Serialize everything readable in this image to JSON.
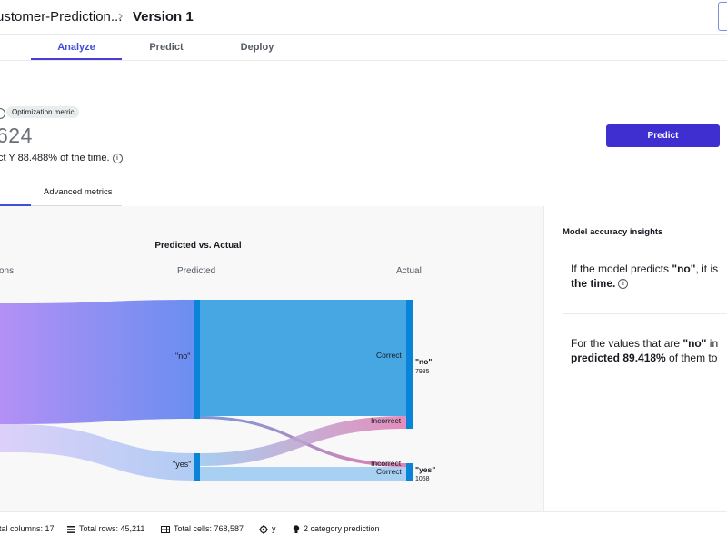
{
  "header": {
    "model_name": "ustomer-Prediction...",
    "version": "Version 1"
  },
  "tabs": [
    {
      "label": "Analyze",
      "active": true
    },
    {
      "label": "Predict",
      "active": false
    },
    {
      "label": "Deploy",
      "active": false
    }
  ],
  "metric": {
    "badge": "Optimization metric",
    "value": "624",
    "description": "ct Y 88.488% of the time."
  },
  "actions": {
    "predict_label": "Predict"
  },
  "subtabs": {
    "advanced": "Advanced metrics"
  },
  "chart_data": {
    "type": "sankey",
    "title": "Predicted vs. Actual",
    "columns": [
      "ons",
      "Predicted",
      "Actual"
    ],
    "predicted_nodes": [
      "\"no\"",
      "\"yes\""
    ],
    "actual_nodes": [
      {
        "name": "\"no\"",
        "count": "7985"
      },
      {
        "name": "\"yes\"",
        "count": "1058"
      }
    ],
    "flows": [
      {
        "predicted": "\"no\"",
        "actual": "\"no\"",
        "label": "Correct"
      },
      {
        "predicted": "\"no\"",
        "actual": "\"yes\"",
        "label": "Incorrect"
      },
      {
        "predicted": "\"yes\"",
        "actual": "\"no\"",
        "label": "Incorrect"
      },
      {
        "predicted": "\"yes\"",
        "actual": "\"yes\"",
        "label": "Correct"
      }
    ]
  },
  "insights": {
    "title": "Model accuracy insights",
    "item1_prefix": "If the model predicts ",
    "item1_value": "\"no\"",
    "item1_suffix": ", it is",
    "item1_line2": "the time.",
    "item2_prefix": "For the values that are ",
    "item2_value": "\"no\"",
    "item2_suffix": " in",
    "item2_line2_bold": "predicted 89.418%",
    "item2_line2_rest": " of them to"
  },
  "footer": {
    "columns": "tal columns: 17",
    "rows": "Total rows: 45,211",
    "cells": "Total cells: 768,587",
    "target": "y",
    "model_type": "2 category prediction"
  },
  "colors": {
    "accent": "#3f2fd1",
    "node": "#0a84d8",
    "correct_flow": "#46a7e3"
  }
}
